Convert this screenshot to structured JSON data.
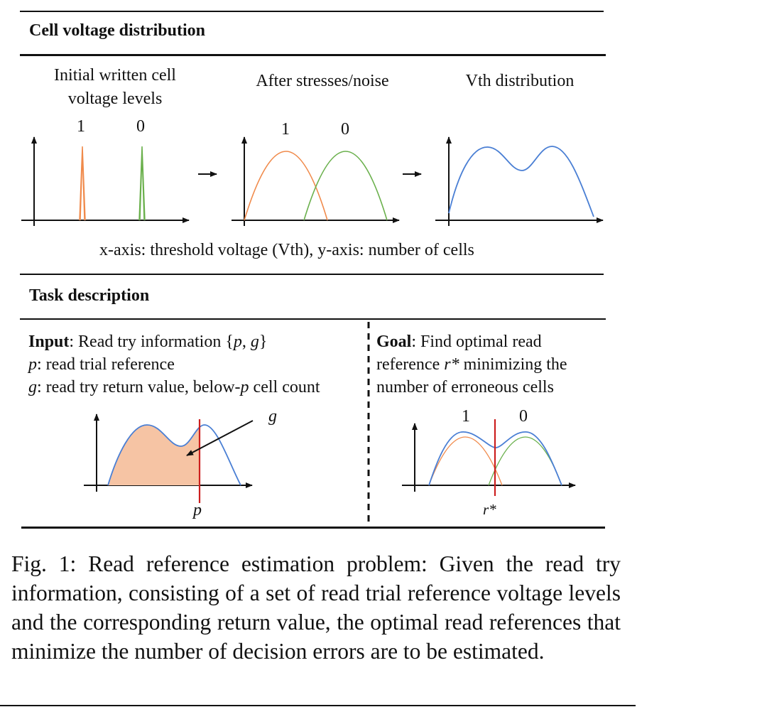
{
  "section1": {
    "title": "Cell voltage distribution",
    "panels": [
      {
        "title_line1": "Initial written cell",
        "title_line2": "voltage levels",
        "label_1": "1",
        "label_0": "0"
      },
      {
        "title": "After stresses/noise",
        "label_1": "1",
        "label_0": "0"
      },
      {
        "title": "Vth distribution"
      }
    ],
    "axis_note": "x-axis: threshold voltage (Vth), y-axis: number of cells"
  },
  "section2": {
    "title": "Task description",
    "input": {
      "bold": "Input",
      "line1_rest": ": Read try information {",
      "sym_p": "p",
      "comma": ", ",
      "sym_g": "g",
      "close": "}",
      "line2_sym": "p",
      "line2_rest": ": read trial reference",
      "line3_sym": "g",
      "line3_rest": ": read try return value, below-",
      "line3_sym2": "p",
      "line3_end": " cell count",
      "plot_label_g": "g",
      "plot_label_p": "p"
    },
    "goal": {
      "bold": "Goal",
      "line1_rest": ": Find optimal read",
      "line2_a": "reference ",
      "line2_sym": "r*",
      "line2_b": " minimizing the",
      "line3": "number of erroneous cells",
      "label_1": "1",
      "label_0": "0",
      "plot_label_r": "r*"
    }
  },
  "caption": "Fig. 1: Read reference estimation problem: Given the read try information, consisting of a set of read trial reference voltage levels and the corresponding return value, the optimal read references that minimize the number of decision errors are to be estimated.",
  "colors": {
    "orange": "#f08a4b",
    "green": "#6ab04c",
    "blue": "#4a7fd4",
    "red": "#cc1f1f",
    "fill": "#f6c4a4"
  }
}
